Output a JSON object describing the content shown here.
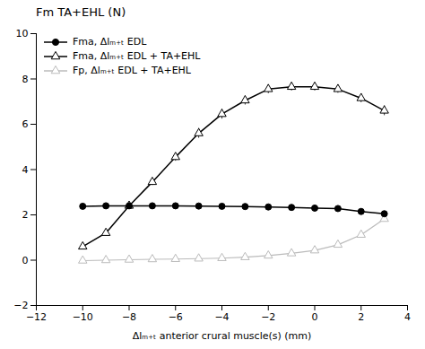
{
  "chart_data": {
    "type": "line",
    "title": "Fm TA+EHL (N)",
    "xlabel": "Δlₘ₊ₜ anterior crural muscle(s) (mm)",
    "xlim": [
      -12,
      4
    ],
    "ylim": [
      -2,
      10
    ],
    "xticks": [
      -12,
      -10,
      -8,
      -6,
      -4,
      -2,
      0,
      2,
      4
    ],
    "yticks": [
      -2,
      0,
      2,
      4,
      6,
      8,
      10
    ],
    "grid": false,
    "legend": "upper left",
    "x": [
      -10,
      -9,
      -8,
      -7,
      -6,
      -5,
      -4,
      -3,
      -2,
      -1,
      0,
      1,
      2,
      3
    ],
    "series": [
      {
        "name": "Fma, Δlₘ₊ₜ EDL",
        "color": "#000000",
        "marker": "circle",
        "values": [
          2.38,
          2.4,
          2.4,
          2.4,
          2.4,
          2.39,
          2.38,
          2.37,
          2.35,
          2.33,
          2.3,
          2.28,
          2.15,
          2.05
        ],
        "yerr": [
          0.05,
          0.04,
          0.04,
          0.04,
          0.04,
          0.04,
          0.04,
          0.04,
          0.04,
          0.04,
          0.04,
          0.04,
          0.05,
          0.07
        ]
      },
      {
        "name": "Fma, Δlₘ₊ₜ EDL + TA+EHL",
        "color": "#000000",
        "marker": "open-triangle",
        "values": [
          0.6,
          1.2,
          2.4,
          3.45,
          4.55,
          5.6,
          6.45,
          7.05,
          7.55,
          7.65,
          7.65,
          7.55,
          7.15,
          6.6
        ],
        "yerr": [
          0.12,
          0.12,
          0.12,
          0.15,
          0.18,
          0.22,
          0.22,
          0.2,
          0.2,
          0.18,
          0.18,
          0.18,
          0.2,
          0.22
        ]
      },
      {
        "name": "Fp, Δlₘ₊ₜ EDL + TA+EHL",
        "color": "#bbbbbb",
        "marker": "open-triangle",
        "values": [
          -0.02,
          0.0,
          0.02,
          0.04,
          0.05,
          0.07,
          0.09,
          0.13,
          0.2,
          0.3,
          0.43,
          0.68,
          1.12,
          1.82
        ],
        "yerr": [
          0.01,
          0.01,
          0.01,
          0.01,
          0.01,
          0.01,
          0.01,
          0.01,
          0.02,
          0.03,
          0.04,
          0.05,
          0.07,
          0.1
        ]
      }
    ]
  }
}
